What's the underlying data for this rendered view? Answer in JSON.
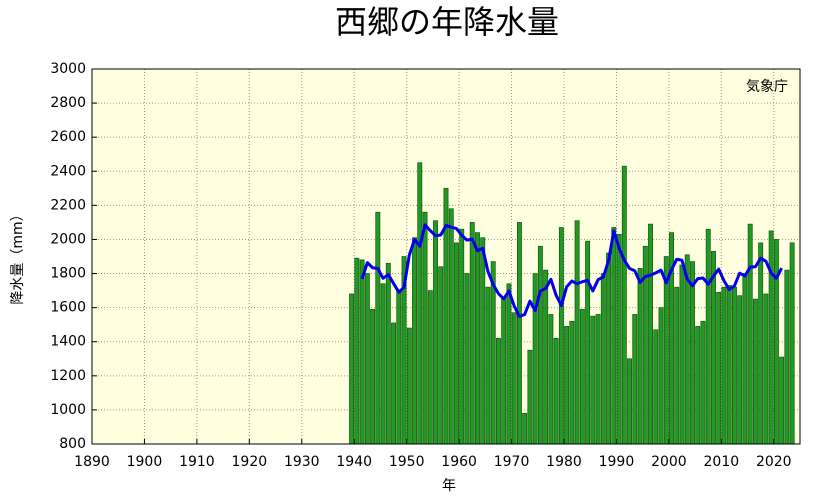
{
  "chart_data": {
    "type": "bar",
    "title": "西郷の年降水量",
    "x_label": "年",
    "y_label": "降水量（mm）",
    "annotation": "気象庁",
    "x": [
      1939,
      1940,
      1941,
      1942,
      1943,
      1944,
      1945,
      1946,
      1947,
      1948,
      1949,
      1950,
      1951,
      1952,
      1953,
      1954,
      1955,
      1956,
      1957,
      1958,
      1959,
      1960,
      1961,
      1962,
      1963,
      1964,
      1965,
      1966,
      1967,
      1968,
      1969,
      1970,
      1971,
      1972,
      1973,
      1974,
      1975,
      1976,
      1977,
      1978,
      1979,
      1980,
      1981,
      1982,
      1983,
      1984,
      1985,
      1986,
      1987,
      1988,
      1989,
      1990,
      1991,
      1992,
      1993,
      1994,
      1995,
      1996,
      1997,
      1998,
      1999,
      2000,
      2001,
      2002,
      2003,
      2004,
      2005,
      2006,
      2007,
      2008,
      2009,
      2010,
      2011,
      2012,
      2013,
      2014,
      2015,
      2016,
      2017,
      2018,
      2019,
      2020,
      2021,
      2022,
      2023
    ],
    "series": [
      {
        "type": "bar",
        "color": "#229922",
        "values": [
          1680,
          1890,
          1880,
          1800,
          1590,
          2160,
          1740,
          1860,
          1510,
          1700,
          1900,
          1480,
          2010,
          2450,
          2160,
          1700,
          2110,
          1840,
          2300,
          2180,
          1980,
          2060,
          1800,
          2100,
          2040,
          2010,
          1720,
          1870,
          1420,
          1660,
          1740,
          1570,
          2100,
          980,
          1350,
          1800,
          1960,
          1820,
          1560,
          1420,
          2070,
          1490,
          1520,
          2110,
          1590,
          1990,
          1550,
          1560,
          1800,
          1920,
          2070,
          2030,
          2430,
          1300,
          1560,
          1830,
          1960,
          2090,
          1470,
          1600,
          1900,
          2040,
          1720,
          1850,
          1910,
          1870,
          1490,
          1520,
          2060,
          1930,
          1690,
          1720,
          1730,
          1720,
          1670,
          1800,
          2090,
          1650,
          1980,
          1680,
          2050,
          2000,
          1310,
          1820,
          1980
        ]
      },
      {
        "type": "line",
        "color": "#0000ee",
        "values": [
          null,
          null,
          1768,
          1864,
          1834,
          1830,
          1772,
          1794,
          1742,
          1690,
          1720,
          1908,
          2000,
          1960,
          2086,
          2052,
          2022,
          2026,
          2082,
          2072,
          2064,
          2024,
          1996,
          2002,
          1934,
          1948,
          1812,
          1736,
          1682,
          1652,
          1698,
          1610,
          1548,
          1560,
          1638,
          1582,
          1698,
          1712,
          1766,
          1672,
          1612,
          1722,
          1756,
          1740,
          1752,
          1760,
          1698,
          1764,
          1780,
          1876,
          2050,
          1950,
          1878,
          1830,
          1816,
          1748,
          1782,
          1790,
          1804,
          1820,
          1746,
          1822,
          1884,
          1878,
          1768,
          1728,
          1770,
          1774,
          1738,
          1784,
          1826,
          1758,
          1706,
          1728,
          1802,
          1786,
          1838,
          1840,
          1890,
          1872,
          1804,
          1772,
          1832,
          null,
          null
        ]
      }
    ],
    "xlim": [
      1890,
      2025
    ],
    "xticks": [
      1890,
      1900,
      1910,
      1920,
      1930,
      1940,
      1950,
      1960,
      1970,
      1980,
      1990,
      2000,
      2010,
      2020
    ],
    "ylim": [
      800,
      3000
    ],
    "yticks": [
      800,
      1000,
      1200,
      1400,
      1600,
      1800,
      2000,
      2200,
      2400,
      2600,
      2800,
      3000
    ],
    "grid": true,
    "background": "#ffffe0"
  }
}
